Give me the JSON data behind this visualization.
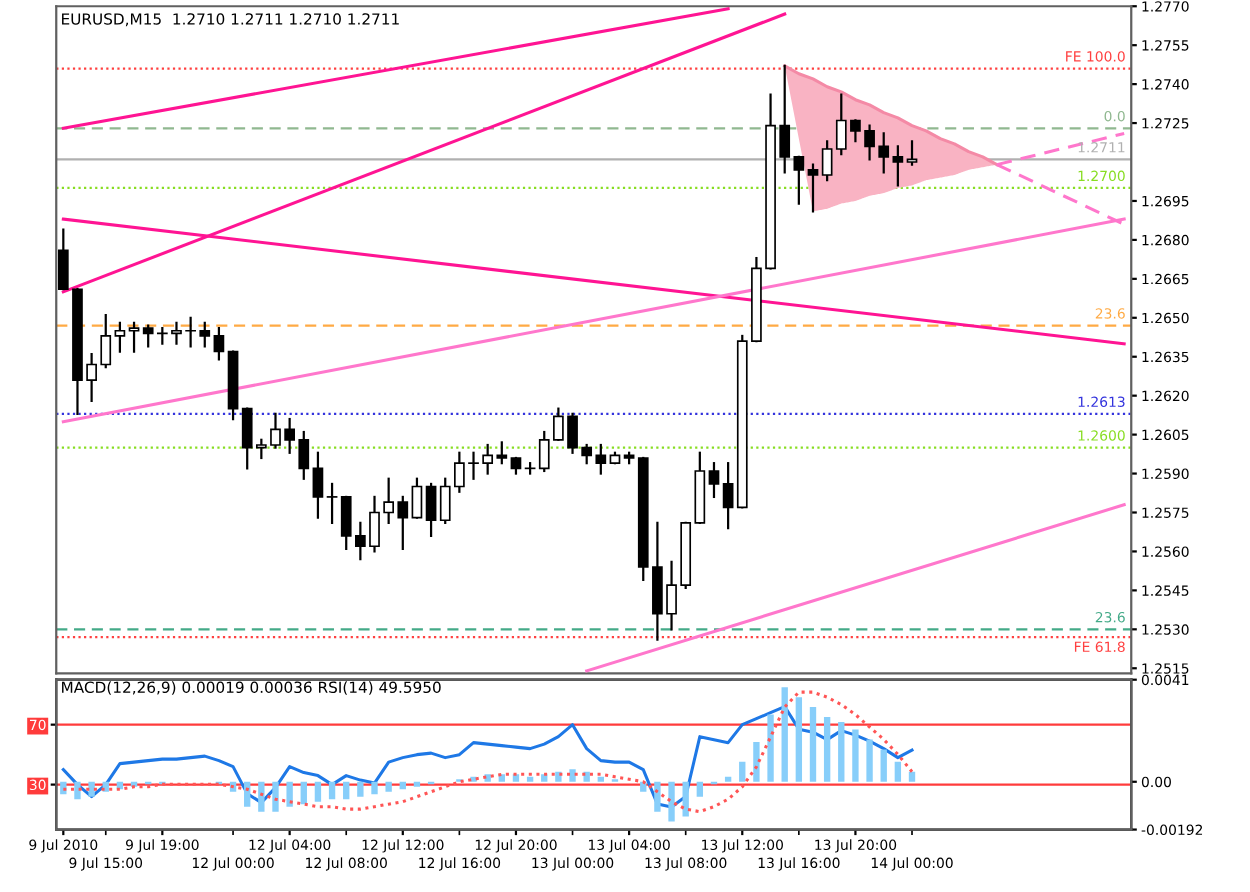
{
  "chart_data": [
    {
      "type": "candlestick",
      "title": "EURUSD,M15  1.2710 1.2711 1.2710 1.2711",
      "color": "#000000",
      "tick_labels": "y",
      "categories": [
        null,
        null,
        null,
        null,
        null,
        null,
        null,
        null,
        null,
        null,
        null,
        null,
        null,
        null,
        null,
        null,
        null,
        null,
        null,
        null,
        null,
        null,
        null,
        null,
        null,
        null,
        null,
        null,
        null,
        null,
        null,
        null,
        null,
        null,
        null,
        null,
        null,
        null,
        null,
        null,
        null,
        null,
        null,
        null,
        null,
        null,
        null,
        null,
        null,
        null,
        null,
        null,
        null,
        null,
        null,
        null,
        null,
        null,
        null,
        null,
        null,
        null,
        null,
        null,
        null,
        null,
        null,
        null,
        null,
        null,
        null,
        null,
        null,
        null,
        null,
        null
      ],
      "ohlc": [
        [
          1.2676,
          1.2684,
          1.2661,
          1.2661
        ],
        [
          1.2661,
          1.2661,
          1.2613,
          1.2626
        ],
        [
          1.2626,
          1.2636,
          1.2618,
          1.2632
        ],
        [
          1.2632,
          1.2651,
          1.2631,
          1.2643
        ],
        [
          1.2643,
          1.2648,
          1.2637,
          1.2645
        ],
        [
          1.2645,
          1.2648,
          1.2637,
          1.2646
        ],
        [
          1.2646,
          1.2647,
          1.2639,
          1.2644
        ],
        [
          1.2644,
          1.2646,
          1.264,
          1.2644
        ],
        [
          1.2644,
          1.2648,
          1.264,
          1.2645
        ],
        [
          1.2645,
          1.265,
          1.2639,
          1.2645
        ],
        [
          1.2645,
          1.2648,
          1.2639,
          1.2643
        ],
        [
          1.2643,
          1.2646,
          1.2634,
          1.2637
        ],
        [
          1.2637,
          1.2637,
          1.2611,
          1.2615
        ],
        [
          1.2615,
          1.2615,
          1.2592,
          1.26
        ],
        [
          1.26,
          1.2603,
          1.2596,
          1.2601
        ],
        [
          1.2601,
          1.2613,
          1.26,
          1.2607
        ],
        [
          1.2607,
          1.2611,
          1.2598,
          1.2603
        ],
        [
          1.2603,
          1.2606,
          1.2588,
          1.2592
        ],
        [
          1.2592,
          1.2598,
          1.2573,
          1.2581
        ],
        [
          1.2581,
          1.2586,
          1.2571,
          1.2581
        ],
        [
          1.2581,
          1.2581,
          1.2561,
          1.2566
        ],
        [
          1.2566,
          1.2571,
          1.2557,
          1.2562
        ],
        [
          1.2562,
          1.2581,
          1.256,
          1.2575
        ],
        [
          1.2575,
          1.2588,
          1.2571,
          1.2579
        ],
        [
          1.2579,
          1.2581,
          1.2561,
          1.2573
        ],
        [
          1.2573,
          1.2588,
          1.2573,
          1.2585
        ],
        [
          1.2585,
          1.2586,
          1.2566,
          1.2572
        ],
        [
          1.2572,
          1.2588,
          1.2571,
          1.2585
        ],
        [
          1.2585,
          1.2598,
          1.2583,
          1.2594
        ],
        [
          1.2594,
          1.2598,
          1.2588,
          1.2594
        ],
        [
          1.2594,
          1.2601,
          1.259,
          1.2597
        ],
        [
          1.2597,
          1.2602,
          1.2594,
          1.2596
        ],
        [
          1.2596,
          1.2596,
          1.259,
          1.2592
        ],
        [
          1.2592,
          1.2594,
          1.259,
          1.2592
        ],
        [
          1.2592,
          1.2606,
          1.2591,
          1.2603
        ],
        [
          1.2603,
          1.2615,
          1.2603,
          1.2612
        ],
        [
          1.2612,
          1.2613,
          1.2598,
          1.26
        ],
        [
          1.26,
          1.2601,
          1.2594,
          1.2597
        ],
        [
          1.2597,
          1.2601,
          1.259,
          1.2594
        ],
        [
          1.2594,
          1.2598,
          1.2594,
          1.2597
        ],
        [
          1.2597,
          1.2598,
          1.2594,
          1.2596
        ],
        [
          1.2596,
          1.2596,
          1.2549,
          1.2554
        ],
        [
          1.2554,
          1.2571,
          1.2526,
          1.2536
        ],
        [
          1.2536,
          1.2556,
          1.253,
          1.2547
        ],
        [
          1.2547,
          1.2571,
          1.2546,
          1.2571
        ],
        [
          1.2571,
          1.2598,
          1.2571,
          1.2591
        ],
        [
          1.2591,
          1.2594,
          1.2581,
          1.2586
        ],
        [
          1.2586,
          1.2594,
          1.2569,
          1.2577
        ],
        [
          1.2577,
          1.2643,
          1.2577,
          1.2641
        ],
        [
          1.2641,
          1.2673,
          1.2641,
          1.2669
        ],
        [
          1.2669,
          1.2736,
          1.2669,
          1.2724
        ],
        [
          1.2724,
          1.2747,
          1.2706,
          1.2712
        ],
        [
          1.2712,
          1.2712,
          1.2694,
          1.2707
        ],
        [
          1.2707,
          1.2709,
          1.2691,
          1.2705
        ],
        [
          1.2705,
          1.2718,
          1.2703,
          1.2715
        ],
        [
          1.2715,
          1.2736,
          1.2713,
          1.2726
        ],
        [
          1.2726,
          1.2726,
          1.2718,
          1.2722
        ],
        [
          1.2722,
          1.2724,
          1.2711,
          1.2716
        ],
        [
          1.2716,
          1.2721,
          1.2706,
          1.2712
        ],
        [
          1.2712,
          1.2716,
          1.2701,
          1.271
        ],
        [
          1.271,
          1.2718,
          1.2709,
          1.2711
        ],
        null,
        null,
        null,
        null,
        null,
        null,
        null,
        null,
        null,
        null,
        null,
        null,
        null,
        null,
        null
      ],
      "series": [
        {
          "type": "line",
          "color": "#f48aa6",
          "line_style": "solid",
          "values": [
            null,
            null,
            null,
            null,
            null,
            null,
            null,
            null,
            null,
            null,
            null,
            null,
            null,
            null,
            null,
            null,
            null,
            null,
            null,
            null,
            null,
            null,
            null,
            null,
            null,
            null,
            null,
            null,
            null,
            null,
            null,
            null,
            null,
            null,
            null,
            null,
            null,
            null,
            null,
            null,
            null,
            null,
            null,
            null,
            null,
            null,
            null,
            null,
            null,
            null,
            null,
            1.2747,
            1.2744,
            1.2742,
            1.2739,
            1.2737,
            1.2734,
            1.2732,
            1.2729,
            1.2727,
            1.2724,
            1.2722,
            1.2719,
            1.2717,
            1.2714,
            1.2712,
            1.2709,
            null,
            null,
            null,
            null,
            null,
            null,
            null,
            null,
            null
          ],
          "upper": [
            null,
            null,
            null,
            null,
            null,
            null,
            null,
            null,
            null,
            null,
            null,
            null,
            null,
            null,
            null,
            null,
            null,
            null,
            null,
            null,
            null,
            null,
            null,
            null,
            null,
            null,
            null,
            null,
            null,
            null,
            null,
            null,
            null,
            null,
            null,
            null,
            null,
            null,
            null,
            null,
            null,
            null,
            null,
            null,
            null,
            null,
            null,
            null,
            null,
            null,
            null,
            1.2747,
            1.2744,
            1.2742,
            1.2739,
            1.2737,
            1.2734,
            1.2732,
            1.2729,
            1.2727,
            1.2724,
            1.2722,
            1.2719,
            1.2717,
            1.2714,
            1.2712,
            1.2709,
            null,
            null,
            null,
            null,
            null,
            null,
            null,
            null,
            null
          ],
          "lower": [
            null,
            null,
            null,
            null,
            null,
            null,
            null,
            null,
            null,
            null,
            null,
            null,
            null,
            null,
            null,
            null,
            null,
            null,
            null,
            null,
            null,
            null,
            null,
            null,
            null,
            null,
            null,
            null,
            null,
            null,
            null,
            null,
            null,
            null,
            null,
            null,
            null,
            null,
            null,
            null,
            null,
            null,
            null,
            null,
            null,
            null,
            null,
            null,
            null,
            null,
            null,
            1.2747,
            1.2719,
            1.2691,
            1.2692,
            1.2694,
            1.2695,
            1.2697,
            1.2698,
            1.27,
            1.2701,
            1.2703,
            1.2704,
            1.2705,
            1.2707,
            1.2708,
            1.2709,
            null,
            null,
            null,
            null,
            null,
            null,
            null,
            null,
            null
          ]
        },
        {
          "type": "line",
          "color": "#ff1493",
          "line_style": "solid",
          "values": [
            1.2723,
            null,
            null,
            null,
            null,
            null,
            null,
            null,
            null,
            null,
            null,
            null,
            null,
            null,
            null,
            null,
            null,
            null,
            null,
            null,
            null,
            null,
            null,
            null,
            null,
            null,
            null,
            null,
            null,
            null,
            null,
            null,
            null,
            null,
            null,
            null,
            null,
            null,
            null,
            null,
            null,
            null,
            null,
            null,
            null,
            null,
            null,
            1.2769,
            null,
            null,
            null,
            null,
            null,
            null,
            null,
            null,
            null,
            null,
            null,
            null,
            null,
            null,
            null,
            null,
            null,
            null,
            null,
            null,
            null,
            null,
            null,
            null,
            null,
            null,
            null,
            null
          ]
        },
        {
          "type": "line",
          "color": "#ff1493",
          "line_style": "solid",
          "values": [
            1.266,
            null,
            null,
            null,
            null,
            null,
            null,
            null,
            null,
            null,
            null,
            null,
            null,
            null,
            null,
            null,
            null,
            null,
            null,
            null,
            null,
            null,
            null,
            null,
            null,
            null,
            null,
            null,
            null,
            null,
            null,
            null,
            null,
            null,
            null,
            null,
            null,
            null,
            null,
            null,
            null,
            null,
            null,
            null,
            null,
            null,
            null,
            null,
            null,
            null,
            null,
            1.2767,
            null,
            null,
            null,
            null,
            null,
            null,
            null,
            null,
            null,
            null,
            null,
            null,
            null,
            null,
            null,
            null,
            null,
            null,
            null,
            null,
            null,
            null,
            null,
            null
          ]
        },
        {
          "type": "line",
          "color": "#ff1493",
          "line_style": "solid",
          "values": [
            1.2688,
            null,
            null,
            null,
            null,
            null,
            null,
            null,
            null,
            null,
            null,
            null,
            null,
            null,
            null,
            null,
            null,
            null,
            null,
            null,
            null,
            null,
            null,
            null,
            null,
            null,
            null,
            null,
            null,
            null,
            null,
            null,
            null,
            null,
            null,
            null,
            null,
            null,
            null,
            null,
            null,
            null,
            null,
            null,
            null,
            null,
            null,
            null,
            null,
            null,
            null,
            null,
            null,
            null,
            null,
            null,
            null,
            null,
            null,
            null,
            null,
            null,
            null,
            null,
            null,
            null,
            null,
            null,
            null,
            null,
            null,
            null,
            null,
            null,
            null,
            1.264
          ]
        },
        {
          "type": "line",
          "color": "#ff77cc",
          "line_style": "solid",
          "values": [
            1.261,
            null,
            null,
            null,
            null,
            null,
            null,
            null,
            null,
            null,
            null,
            null,
            null,
            null,
            null,
            null,
            null,
            null,
            null,
            null,
            null,
            null,
            null,
            null,
            null,
            null,
            null,
            null,
            null,
            null,
            null,
            null,
            null,
            null,
            null,
            null,
            null,
            null,
            null,
            null,
            null,
            null,
            null,
            null,
            null,
            null,
            null,
            null,
            null,
            null,
            null,
            null,
            null,
            null,
            null,
            null,
            null,
            null,
            null,
            null,
            null,
            null,
            null,
            null,
            null,
            null,
            null,
            null,
            null,
            null,
            null,
            null,
            null,
            null,
            null,
            1.2688
          ]
        },
        {
          "type": "line",
          "color": "#ff77cc",
          "line_style": "solid",
          "values": [
            null,
            null,
            null,
            null,
            null,
            null,
            null,
            null,
            null,
            null,
            null,
            null,
            null,
            null,
            null,
            null,
            null,
            null,
            null,
            null,
            null,
            null,
            null,
            null,
            null,
            null,
            null,
            null,
            null,
            null,
            null,
            null,
            null,
            null,
            null,
            null,
            null,
            1.2514,
            null,
            null,
            null,
            null,
            null,
            null,
            null,
            null,
            null,
            null,
            null,
            null,
            null,
            null,
            null,
            null,
            null,
            null,
            null,
            null,
            null,
            null,
            null,
            null,
            null,
            null,
            null,
            null,
            null,
            null,
            null,
            null,
            null,
            null,
            null,
            null,
            null,
            1.2578
          ]
        },
        {
          "type": "line",
          "color": "#ff77cc",
          "line_style": "dashed",
          "values": [
            null,
            null,
            null,
            null,
            null,
            null,
            null,
            null,
            null,
            null,
            null,
            null,
            null,
            null,
            null,
            null,
            null,
            null,
            null,
            null,
            null,
            null,
            null,
            null,
            null,
            null,
            null,
            null,
            null,
            null,
            null,
            null,
            null,
            null,
            null,
            null,
            null,
            null,
            null,
            null,
            null,
            null,
            null,
            null,
            null,
            null,
            null,
            null,
            null,
            null,
            null,
            null,
            null,
            null,
            null,
            null,
            null,
            null,
            null,
            null,
            null,
            null,
            null,
            null,
            null,
            null,
            1.2709,
            null,
            null,
            null,
            null,
            null,
            null,
            null,
            null,
            1.2686
          ]
        },
        {
          "type": "line",
          "color": "#ff77cc",
          "line_style": "dashed",
          "values": [
            null,
            null,
            null,
            null,
            null,
            null,
            null,
            null,
            null,
            null,
            null,
            null,
            null,
            null,
            null,
            null,
            null,
            null,
            null,
            null,
            null,
            null,
            null,
            null,
            null,
            null,
            null,
            null,
            null,
            null,
            null,
            null,
            null,
            null,
            null,
            null,
            null,
            null,
            null,
            null,
            null,
            null,
            null,
            null,
            null,
            null,
            null,
            null,
            null,
            null,
            null,
            null,
            null,
            null,
            null,
            null,
            null,
            null,
            null,
            null,
            null,
            null,
            null,
            null,
            null,
            null,
            1.2709,
            null,
            null,
            null,
            null,
            null,
            null,
            null,
            null,
            1.2721
          ]
        }
      ],
      "ylim": [
        1.2513,
        1.277
      ],
      "yticks": [
        {
          "value": 1.277,
          "label": "1.2770"
        },
        1.2755,
        {
          "value": 1.274,
          "label": "1.2740"
        },
        1.2725,
        1.2695,
        {
          "value": 1.268,
          "label": "1.2680"
        },
        1.2665,
        {
          "value": 1.265,
          "label": "1.2650"
        },
        1.2635,
        {
          "value": 1.262,
          "label": "1.2620"
        },
        1.2605,
        {
          "value": 1.259,
          "label": "1.2590"
        },
        1.2575,
        {
          "value": 1.256,
          "label": "1.2560"
        },
        1.2545,
        {
          "value": 1.253,
          "label": "1.2530"
        },
        1.2515
      ],
      "ref_lines": [
        {
          "axis": "y",
          "value": 1.2746,
          "color": "#ff4040",
          "line_style": "dotted"
        },
        {
          "axis": "y",
          "value": 1.2723,
          "color": "#90b890",
          "line_style": "dashed"
        },
        {
          "axis": "y",
          "value": 1.2711,
          "label": "1.2711",
          "color": "#b0b0b0",
          "line_style": "solid"
        },
        {
          "axis": "y",
          "value": 1.27,
          "label": "1.2700",
          "color": "#88dd22",
          "line_style": "dotted"
        },
        {
          "axis": "y",
          "value": 1.2647,
          "color": "#ffaa44",
          "line_style": "dashed"
        },
        {
          "axis": "y",
          "value": 1.2613,
          "label": "1.2613",
          "color": "#3333dd",
          "line_style": "dotted"
        },
        {
          "axis": "y",
          "value": 1.26,
          "label": "1.2600",
          "color": "#88dd22",
          "line_style": "dotted"
        },
        {
          "axis": "y",
          "value": 1.253,
          "color": "#44aa88",
          "line_style": "dashed"
        },
        {
          "axis": "y",
          "value": 1.2527,
          "color": "#ff4040",
          "line_style": "dotted"
        }
      ],
      "annotations": [
        {
          "text": "FE 100.0",
          "y": 1.2746
        },
        {
          "text": "0.0",
          "y": 1.2723
        },
        {
          "text": "23.6",
          "y": 1.2647
        },
        {
          "text": "23.6",
          "y": 1.253
        },
        {
          "text": "FE 61.8",
          "y": 1.2527
        }
      ]
    },
    {
      "type": "bar",
      "title": "MACD(12,26,9) 0.00019 0.00036 RSI(14) 49.5950",
      "categories": [
        "9 Jul 2010",
        null,
        null,
        "9 Jul 15:00",
        null,
        null,
        null,
        "9 Jul 19:00",
        null,
        null,
        null,
        null,
        "12 Jul 00:00",
        null,
        null,
        null,
        "12 Jul 04:00",
        null,
        null,
        null,
        "12 Jul 08:00",
        null,
        null,
        null,
        "12 Jul 12:00",
        null,
        null,
        null,
        "12 Jul 16:00",
        null,
        null,
        null,
        "12 Jul 20:00",
        null,
        null,
        null,
        "13 Jul 00:00",
        null,
        null,
        null,
        "13 Jul 04:00",
        null,
        null,
        null,
        "13 Jul 08:00",
        null,
        null,
        null,
        "13 Jul 12:00",
        null,
        null,
        null,
        "13 Jul 16:00",
        null,
        null,
        null,
        "13 Jul 20:00",
        null,
        null,
        null,
        "14 Jul 00:00",
        null,
        null,
        null,
        null,
        null,
        null,
        null,
        null,
        null,
        null,
        null,
        null,
        null,
        null,
        null
      ],
      "series": [
        {
          "type": "bar",
          "color": "#87cefa",
          "values": [
            -0.0005,
            -0.0007,
            -0.0006,
            -0.0004,
            -0.0003,
            -0.0002,
            -0.0001,
            -0.0001,
            0.0,
            0.0,
            0.0,
            -0.0001,
            -0.0004,
            -0.001,
            -0.0012,
            -0.0012,
            -0.001,
            -0.0009,
            -0.0008,
            -0.0007,
            -0.0007,
            -0.0006,
            -0.0005,
            -0.0004,
            -0.0003,
            -0.0002,
            -0.0001,
            0.0,
            0.0001,
            0.0002,
            0.0003,
            0.0003,
            0.0003,
            0.0002,
            0.0003,
            0.0004,
            0.0005,
            0.0004,
            0.0002,
            0.0001,
            0.0,
            -0.0004,
            -0.0012,
            -0.0016,
            -0.0014,
            -0.0006,
            -0.0001,
            0.0002,
            0.0008,
            0.0016,
            0.0027,
            0.0038,
            0.0034,
            0.003,
            0.0026,
            0.0024,
            0.0021,
            0.0017,
            0.0013,
            0.0008,
            0.0004,
            null,
            null,
            null,
            null,
            null,
            null,
            null,
            null,
            null,
            null,
            null,
            null,
            null,
            null,
            null
          ]
        },
        {
          "type": "line",
          "color": "#ff5555",
          "line_style": "dotted",
          "values": [
            -0.0003,
            -0.0003,
            -0.0003,
            -0.0003,
            -0.0003,
            -0.0002,
            -0.0002,
            -0.0001,
            -0.0001,
            -0.0001,
            -0.0001,
            -0.0001,
            -0.0002,
            -0.0003,
            -0.0005,
            -0.0007,
            -0.0008,
            -0.0009,
            -0.001,
            -0.001,
            -0.0011,
            -0.0011,
            -0.001,
            -0.0009,
            -0.0008,
            -0.0006,
            -0.0004,
            -0.0002,
            0.0,
            0.0001,
            0.0002,
            0.0003,
            0.0003,
            0.0003,
            0.0003,
            0.0003,
            0.0003,
            0.0003,
            0.0003,
            0.0002,
            0.0001,
            0.0,
            -0.0004,
            -0.0008,
            -0.0011,
            -0.0012,
            -0.001,
            -0.0007,
            -0.0002,
            0.0006,
            0.0018,
            0.003,
            0.0036,
            0.0036,
            0.0034,
            0.0031,
            0.0027,
            0.0022,
            0.0017,
            0.0011,
            0.0004,
            null,
            null,
            null,
            null,
            null,
            null,
            null,
            null,
            null,
            null,
            null,
            null,
            null,
            null,
            null
          ]
        },
        {
          "type": "line",
          "color": "#1e78e6",
          "line_style": "solid",
          "axis": "y2",
          "values": [
            40,
            30,
            22,
            30,
            44,
            45,
            46,
            47,
            47,
            48,
            49,
            46,
            42,
            24,
            18,
            28,
            42,
            38,
            36,
            30,
            36,
            33,
            31,
            45,
            48,
            50,
            51,
            48,
            50,
            58,
            57,
            56,
            55,
            54,
            57,
            62,
            70,
            54,
            46,
            45,
            45,
            40,
            17,
            15,
            22,
            62,
            60,
            58,
            70,
            74,
            78,
            82,
            67,
            65,
            60,
            66,
            63,
            59,
            54,
            48,
            53,
            null,
            null,
            null,
            null,
            null,
            null,
            null,
            null,
            null,
            null,
            null,
            null,
            null,
            null,
            null
          ]
        }
      ],
      "ylim": [
        -0.00192,
        0.0041
      ],
      "yticks": [
        0.0041,
        {
          "value": 0,
          "label": "0.00"
        },
        -0.00192
      ],
      "y2lim": [
        0,
        100
      ],
      "y2ticks": [
        70,
        30
      ],
      "ref_lines": [
        {
          "axis": "y2",
          "value": 70,
          "color": "#ff3b3b",
          "line_style": "solid"
        },
        {
          "axis": "y2",
          "value": 30,
          "color": "#ff3b3b",
          "line_style": "solid"
        }
      ]
    }
  ]
}
